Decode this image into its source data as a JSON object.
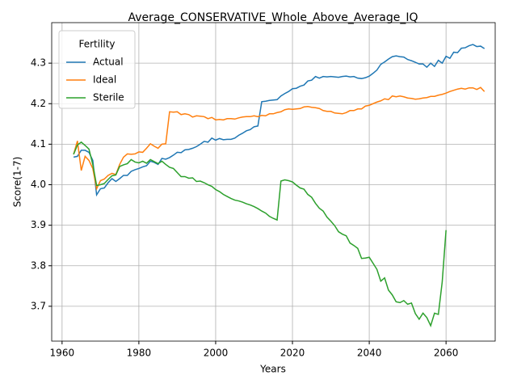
{
  "chart_data": {
    "type": "line",
    "title": "Average_CONSERVATIVE_Whole_Above_Average_IQ",
    "xlabel": "Years",
    "ylabel": "Score(1-7)",
    "x": [
      1963,
      1964,
      1965,
      1966,
      1967,
      1968,
      1969,
      1970,
      1971,
      1972,
      1973,
      1974,
      1975,
      1976,
      1977,
      1978,
      1979,
      1980,
      1981,
      1982,
      1983,
      1984,
      1985,
      1986,
      1987,
      1988,
      1989,
      1990,
      1991,
      1992,
      1993,
      1994,
      1995,
      1996,
      1997,
      1998,
      1999,
      2000,
      2001,
      2002,
      2003,
      2004,
      2005,
      2006,
      2007,
      2008,
      2009,
      2010,
      2011,
      2012,
      2013,
      2014,
      2015,
      2016,
      2017,
      2018,
      2019,
      2020,
      2021,
      2022,
      2023,
      2024,
      2025,
      2026,
      2027,
      2028,
      2029,
      2030,
      2031,
      2032,
      2033,
      2034,
      2035,
      2036,
      2037,
      2038,
      2039,
      2040,
      2041,
      2042,
      2043,
      2044,
      2045,
      2046,
      2047,
      2048,
      2049,
      2050,
      2051,
      2052,
      2053,
      2054,
      2055,
      2056,
      2057,
      2058,
      2059,
      2060,
      2061,
      2062,
      2063,
      2064,
      2065,
      2066,
      2067,
      2068,
      2069,
      2070
    ],
    "series": [
      {
        "name": "Actual",
        "color": "#1f77b4",
        "values": [
          4.068,
          4.07,
          4.085,
          4.085,
          4.08,
          4.06,
          3.975,
          3.99,
          3.992,
          4.005,
          4.015,
          4.008,
          4.015,
          4.023,
          4.023,
          4.033,
          4.037,
          4.04,
          4.044,
          4.047,
          4.058,
          4.055,
          4.05,
          4.065,
          4.063,
          4.067,
          4.073,
          4.08,
          4.079,
          4.086,
          4.087,
          4.09,
          4.094,
          4.1,
          4.107,
          4.105,
          4.115,
          4.11,
          4.114,
          4.111,
          4.112,
          4.112,
          4.115,
          4.122,
          4.127,
          4.133,
          4.136,
          4.143,
          4.145,
          4.205,
          4.206,
          4.208,
          4.209,
          4.21,
          4.219,
          4.225,
          4.23,
          4.237,
          4.238,
          4.243,
          4.246,
          4.256,
          4.258,
          4.267,
          4.263,
          4.267,
          4.266,
          4.267,
          4.266,
          4.265,
          4.267,
          4.268,
          4.266,
          4.267,
          4.263,
          4.262,
          4.264,
          4.268,
          4.275,
          4.283,
          4.297,
          4.303,
          4.31,
          4.316,
          4.318,
          4.316,
          4.315,
          4.309,
          4.306,
          4.302,
          4.298,
          4.298,
          4.29,
          4.3,
          4.292,
          4.307,
          4.3,
          4.317,
          4.312,
          4.327,
          4.326,
          4.337,
          4.338,
          4.343,
          4.346,
          4.341,
          4.342,
          4.336
        ]
      },
      {
        "name": "Ideal",
        "color": "#ff7f0e",
        "values": [
          4.075,
          4.108,
          4.035,
          4.07,
          4.06,
          4.04,
          3.99,
          4.01,
          4.014,
          4.023,
          4.028,
          4.025,
          4.05,
          4.068,
          4.076,
          4.075,
          4.076,
          4.081,
          4.08,
          4.09,
          4.101,
          4.095,
          4.09,
          4.1,
          4.101,
          4.18,
          4.179,
          4.18,
          4.173,
          4.175,
          4.173,
          4.167,
          4.17,
          4.169,
          4.168,
          4.163,
          4.166,
          4.16,
          4.161,
          4.16,
          4.163,
          4.163,
          4.162,
          4.165,
          4.167,
          4.168,
          4.168,
          4.17,
          4.168,
          4.171,
          4.17,
          4.175,
          4.175,
          4.178,
          4.18,
          4.185,
          4.187,
          4.186,
          4.187,
          4.188,
          4.192,
          4.193,
          4.191,
          4.19,
          4.188,
          4.183,
          4.181,
          4.181,
          4.177,
          4.176,
          4.175,
          4.178,
          4.183,
          4.183,
          4.187,
          4.187,
          4.194,
          4.196,
          4.2,
          4.204,
          4.207,
          4.212,
          4.21,
          4.219,
          4.217,
          4.219,
          4.217,
          4.214,
          4.213,
          4.211,
          4.212,
          4.214,
          4.215,
          4.218,
          4.218,
          4.221,
          4.223,
          4.226,
          4.23,
          4.233,
          4.236,
          4.238,
          4.236,
          4.239,
          4.239,
          4.235,
          4.24,
          4.23
        ]
      },
      {
        "name": "Sterile",
        "color": "#2ca02c",
        "values": [
          4.075,
          4.098,
          4.105,
          4.097,
          4.088,
          4.05,
          3.998,
          4.0,
          4.003,
          4.013,
          4.022,
          4.024,
          4.045,
          4.049,
          4.052,
          4.062,
          4.056,
          4.054,
          4.058,
          4.053,
          4.062,
          4.057,
          4.052,
          4.058,
          4.05,
          4.043,
          4.04,
          4.03,
          4.02,
          4.02,
          4.016,
          4.017,
          4.008,
          4.009,
          4.005,
          4.0,
          3.996,
          3.988,
          3.983,
          3.976,
          3.971,
          3.966,
          3.962,
          3.96,
          3.957,
          3.953,
          3.95,
          3.946,
          3.941,
          3.935,
          3.93,
          3.922,
          3.917,
          3.913,
          4.009,
          4.012,
          4.01,
          4.007,
          3.999,
          3.992,
          3.989,
          3.976,
          3.969,
          3.954,
          3.942,
          3.935,
          3.92,
          3.91,
          3.899,
          3.884,
          3.878,
          3.874,
          3.856,
          3.85,
          3.843,
          3.818,
          3.819,
          3.821,
          3.806,
          3.791,
          3.762,
          3.77,
          3.74,
          3.728,
          3.711,
          3.709,
          3.714,
          3.705,
          3.708,
          3.682,
          3.668,
          3.683,
          3.672,
          3.652,
          3.683,
          3.68,
          3.76,
          3.888,
          null,
          null,
          null,
          null,
          null,
          null,
          null,
          null,
          null,
          null
        ]
      }
    ],
    "xlim": [
      1957.3,
      2072.8
    ],
    "xticks": [
      1960,
      1980,
      2000,
      2020,
      2040,
      2060
    ],
    "ylim": [
      3.614,
      4.4
    ],
    "yticks": [
      3.7,
      3.8,
      3.9,
      {
        "value": 4,
        "label": "4.0"
      },
      4.1,
      4.2,
      4.3
    ],
    "grid": true,
    "legend_title": "Fertility",
    "legend_position": "upper left"
  }
}
